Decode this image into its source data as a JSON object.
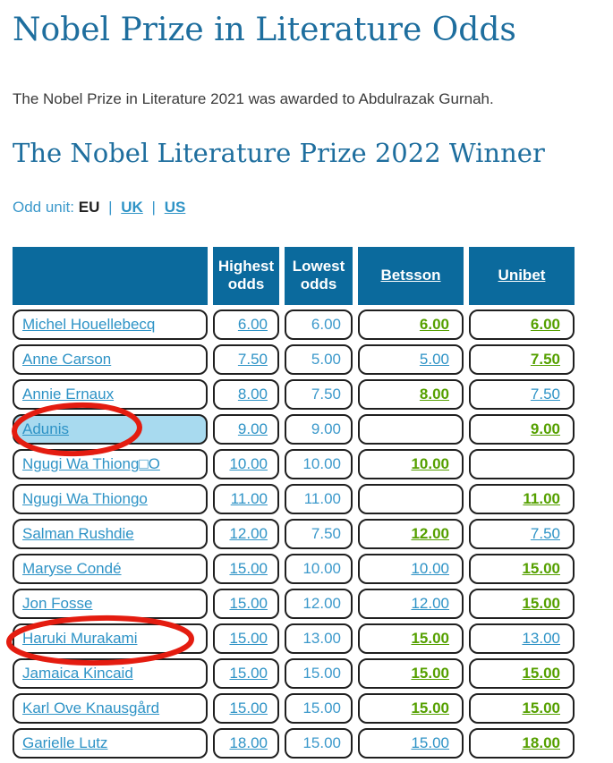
{
  "page": {
    "title": "Nobel Prize in Literature Odds",
    "intro": "The Nobel Prize in Literature 2021 was awarded to Abdulrazak Gurnah.",
    "subtitle": "The Nobel Literature Prize 2022 Winner"
  },
  "odd_unit": {
    "label": "Odd unit:",
    "selected": "EU",
    "separator": "|",
    "links": [
      "UK",
      "US"
    ]
  },
  "colors": {
    "heading_blue": "#1e6e9e",
    "header_bg": "#0b6a9d",
    "link_blue": "#2e93c6",
    "plain_blue": "#3c99cb",
    "best_odds_green": "#55a000",
    "highlight_blue": "#a8daef",
    "annotation_red": "#e41c10"
  },
  "table": {
    "columns": [
      "",
      "Highest odds",
      "Lowest odds",
      "Betsson",
      "Unibet"
    ],
    "rows": [
      {
        "name": "Michel Houellebecq",
        "highest": "6.00",
        "lowest": "6.00",
        "betsson": "6.00",
        "betsson_best": true,
        "unibet": "6.00",
        "unibet_best": true,
        "highlighted": false,
        "circled": false
      },
      {
        "name": "Anne Carson",
        "highest": "7.50",
        "lowest": "5.00",
        "betsson": "5.00",
        "betsson_best": false,
        "unibet": "7.50",
        "unibet_best": true,
        "highlighted": false,
        "circled": false
      },
      {
        "name": "Annie Ernaux",
        "highest": "8.00",
        "lowest": "7.50",
        "betsson": "8.00",
        "betsson_best": true,
        "unibet": "7.50",
        "unibet_best": false,
        "highlighted": false,
        "circled": false
      },
      {
        "name": "Adunis",
        "highest": "9.00",
        "lowest": "9.00",
        "betsson": "",
        "betsson_best": false,
        "unibet": "9.00",
        "unibet_best": true,
        "highlighted": true,
        "circled": true
      },
      {
        "name": "Ngugi Wa Thiong□O",
        "highest": "10.00",
        "lowest": "10.00",
        "betsson": "10.00",
        "betsson_best": true,
        "unibet": "",
        "unibet_best": false,
        "highlighted": false,
        "circled": false
      },
      {
        "name": "Ngugi Wa Thiongo",
        "highest": "11.00",
        "lowest": "11.00",
        "betsson": "",
        "betsson_best": false,
        "unibet": "11.00",
        "unibet_best": true,
        "highlighted": false,
        "circled": false
      },
      {
        "name": "Salman Rushdie",
        "highest": "12.00",
        "lowest": "7.50",
        "betsson": "12.00",
        "betsson_best": true,
        "unibet": "7.50",
        "unibet_best": false,
        "highlighted": false,
        "circled": false
      },
      {
        "name": "Maryse Condé",
        "highest": "15.00",
        "lowest": "10.00",
        "betsson": "10.00",
        "betsson_best": false,
        "unibet": "15.00",
        "unibet_best": true,
        "highlighted": false,
        "circled": false
      },
      {
        "name": "Jon Fosse",
        "highest": "15.00",
        "lowest": "12.00",
        "betsson": "12.00",
        "betsson_best": false,
        "unibet": "15.00",
        "unibet_best": true,
        "highlighted": false,
        "circled": false
      },
      {
        "name": "Haruki Murakami",
        "highest": "15.00",
        "lowest": "13.00",
        "betsson": "15.00",
        "betsson_best": true,
        "unibet": "13.00",
        "unibet_best": false,
        "highlighted": false,
        "circled": true
      },
      {
        "name": "Jamaica Kincaid",
        "highest": "15.00",
        "lowest": "15.00",
        "betsson": "15.00",
        "betsson_best": true,
        "unibet": "15.00",
        "unibet_best": true,
        "highlighted": false,
        "circled": false
      },
      {
        "name": "Karl Ove Knausgård",
        "highest": "15.00",
        "lowest": "15.00",
        "betsson": "15.00",
        "betsson_best": true,
        "unibet": "15.00",
        "unibet_best": true,
        "highlighted": false,
        "circled": false
      },
      {
        "name": "Garielle Lutz",
        "highest": "18.00",
        "lowest": "15.00",
        "betsson": "15.00",
        "betsson_best": false,
        "unibet": "18.00",
        "unibet_best": true,
        "highlighted": false,
        "circled": false
      }
    ]
  },
  "annotations": {
    "circled_names": [
      "Adunis",
      "Haruki Murakami"
    ]
  }
}
